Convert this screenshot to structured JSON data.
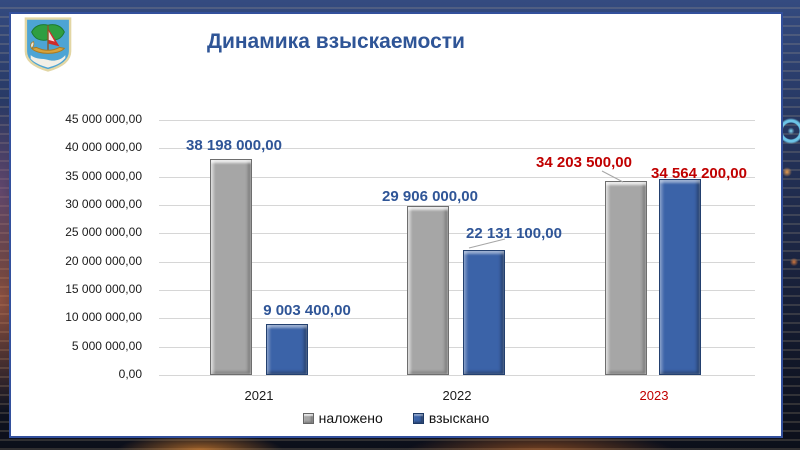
{
  "header": {
    "title": "Динамика взыскаемости"
  },
  "logo": {
    "icon": "naberezhnye-chelny-coat-of-arms"
  },
  "chart_data": {
    "type": "bar",
    "title": "Динамика взыскаемости",
    "categories": [
      "2021",
      "2022",
      "2023"
    ],
    "series": [
      {
        "name": "наложено",
        "color": "#A6A6A6",
        "values": [
          38198000,
          29906000,
          34203500
        ]
      },
      {
        "name": "взыскано",
        "color": "#3B63A8",
        "values": [
          9003400,
          22131100,
          34564200
        ]
      }
    ],
    "value_labels": [
      [
        "38 198 000,00",
        "29 906 000,00",
        "34 203 500,00"
      ],
      [
        "9 003 400,00",
        "22 131 100,00",
        "34 564 200,00"
      ]
    ],
    "label_colors": [
      "#2F5597",
      "#2F5597",
      "#C00000"
    ],
    "category_colors": [
      "#1A1A1A",
      "#1A1A1A",
      "#C00000"
    ],
    "ylim": [
      0,
      45000000
    ],
    "ytick_step": 5000000,
    "yticks": [
      "45 000 000,00",
      "40 000 000,00",
      "35 000 000,00",
      "30 000 000,00",
      "25 000 000,00",
      "20 000 000,00",
      "15 000 000,00",
      "10 000 000,00",
      "5 000 000,00",
      "0,00"
    ],
    "grid": true,
    "legend": [
      "наложено",
      "взыскано"
    ],
    "legend_position": "bottom",
    "accent_colors": {
      "title_blue": "#2F5597",
      "alert_red": "#C00000",
      "bar_gray": "#A6A6A6",
      "bar_blue": "#3B63A8"
    }
  }
}
